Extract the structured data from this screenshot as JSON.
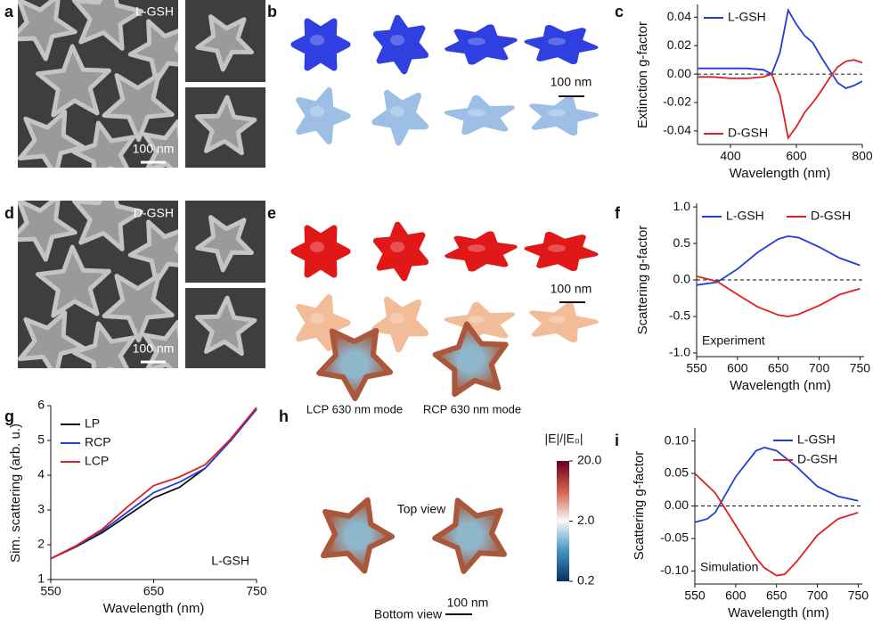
{
  "panels": {
    "a": {
      "label": "a",
      "tag": "L-GSH",
      "scale": "100 nm"
    },
    "b": {
      "label": "b",
      "scale": "100 nm"
    },
    "d": {
      "label": "d",
      "tag": "D-GSH",
      "scale": "100 nm"
    },
    "e": {
      "label": "e",
      "scale": "100 nm"
    },
    "h": {
      "label": "h",
      "titles": [
        "LCP 630 nm mode",
        "RCP 630 nm mode"
      ],
      "views": [
        "Top view",
        "Bottom view"
      ],
      "scale": "100 nm",
      "colorbar": {
        "title": "|E|/|E₀|",
        "lim": [
          0.2,
          20
        ],
        "log": true,
        "ticks": [
          {
            "value": 20,
            "label": "20.0"
          },
          {
            "value": 2,
            "label": "2.0"
          },
          {
            "value": 0.2,
            "label": "0.2"
          }
        ]
      }
    }
  },
  "chart_data": [
    {
      "type": "line",
      "panel_label": "c",
      "xlabel": "Wavelength (nm)",
      "ylabel": "Extinction g-factor",
      "x": [
        300,
        350,
        400,
        450,
        500,
        525,
        550,
        575,
        600,
        625,
        650,
        675,
        700,
        725,
        750,
        775,
        800
      ],
      "series": [
        {
          "name": "L-GSH",
          "color": "#1f3fd6",
          "values": [
            0.004,
            0.004,
            0.004,
            0.004,
            0.003,
            0.0,
            0.015,
            0.045,
            0.035,
            0.027,
            0.022,
            0.012,
            0.003,
            -0.006,
            -0.01,
            -0.008,
            -0.005
          ]
        },
        {
          "name": "D-GSH",
          "color": "#e02020",
          "values": [
            -0.002,
            -0.002,
            -0.003,
            -0.003,
            -0.002,
            0.0,
            -0.015,
            -0.045,
            -0.037,
            -0.027,
            -0.02,
            -0.012,
            -0.003,
            0.005,
            0.009,
            0.01,
            0.008
          ]
        }
      ],
      "xlim": [
        300,
        800
      ],
      "ylim": [
        -0.0495,
        0.049
      ],
      "xticks": [
        400,
        600,
        800
      ],
      "yticks": [
        0.04,
        0.02,
        {
          "value": 0,
          "label": "0.00"
        },
        -0.02,
        -0.04
      ],
      "hline": 0
    },
    {
      "type": "line",
      "panel_label": "f",
      "xlabel": "Wavelength (nm)",
      "ylabel": "Scattering g-factor",
      "annotation": "Experiment",
      "x": [
        550,
        575,
        600,
        625,
        650,
        662,
        675,
        700,
        725,
        750
      ],
      "series": [
        {
          "name": "L-GSH",
          "color": "#1f3fd6",
          "values": [
            -0.07,
            -0.03,
            0.15,
            0.38,
            0.56,
            0.6,
            0.58,
            0.45,
            0.3,
            0.2
          ]
        },
        {
          "name": "D-GSH",
          "color": "#e02020",
          "values": [
            0.05,
            -0.02,
            -0.2,
            -0.37,
            -0.48,
            -0.5,
            -0.47,
            -0.35,
            -0.2,
            -0.12
          ]
        }
      ],
      "xlim": [
        550,
        755
      ],
      "ylim": [
        -1.05,
        1.05
      ],
      "xticks": [
        550,
        600,
        650,
        700,
        750
      ],
      "yticks": [
        {
          "value": 1,
          "label": "1.0"
        },
        0.5,
        {
          "value": 0,
          "label": "0.0"
        },
        -0.5,
        {
          "value": -1,
          "label": "-1.0"
        }
      ],
      "hline": 0
    },
    {
      "type": "line",
      "panel_label": "g",
      "xlabel": "Wavelength (nm)",
      "ylabel": "Sim. scattering (arb. u.)",
      "annotation": "L-GSH",
      "x": [
        550,
        575,
        600,
        625,
        650,
        675,
        700,
        725,
        750
      ],
      "series": [
        {
          "name": "LP",
          "color": "#111111",
          "values": [
            1.6,
            1.95,
            2.35,
            2.85,
            3.35,
            3.65,
            4.2,
            5.0,
            5.9
          ]
        },
        {
          "name": "RCP",
          "color": "#2040e0",
          "values": [
            1.6,
            1.97,
            2.4,
            2.95,
            3.5,
            3.8,
            4.2,
            5.0,
            5.9
          ]
        },
        {
          "name": "LCP",
          "color": "#e02020",
          "values": [
            1.6,
            1.98,
            2.45,
            3.1,
            3.7,
            3.95,
            4.3,
            5.05,
            5.95
          ]
        }
      ],
      "xlim": [
        550,
        750
      ],
      "ylim": [
        1,
        6
      ],
      "xticks": [
        550,
        650,
        750
      ],
      "yticks": [
        1,
        2,
        3,
        4,
        5,
        6
      ]
    },
    {
      "type": "line",
      "panel_label": "i",
      "xlabel": "Wavelength (nm)",
      "ylabel": "Scattering g-factor",
      "annotation": "Simulation",
      "x": [
        550,
        565,
        575,
        600,
        625,
        635,
        650,
        660,
        675,
        700,
        725,
        750
      ],
      "series": [
        {
          "name": "L-GSH",
          "color": "#1f3fd6",
          "values": [
            -0.025,
            -0.02,
            -0.01,
            0.045,
            0.085,
            0.09,
            0.085,
            0.075,
            0.06,
            0.03,
            0.015,
            0.008
          ]
        },
        {
          "name": "D-GSH",
          "color": "#e02020",
          "values": [
            0.05,
            0.032,
            0.02,
            -0.03,
            -0.08,
            -0.095,
            -0.107,
            -0.105,
            -0.085,
            -0.045,
            -0.02,
            -0.01
          ]
        }
      ],
      "xlim": [
        550,
        755
      ],
      "ylim": [
        -0.12,
        0.12
      ],
      "xticks": [
        550,
        600,
        650,
        700,
        750
      ],
      "yticks": [
        {
          "value": 0.1,
          "label": "0.10"
        },
        0.05,
        {
          "value": 0,
          "label": "0.00"
        },
        -0.05,
        {
          "value": -0.1,
          "label": "-0.10"
        }
      ],
      "hline": 0
    }
  ]
}
